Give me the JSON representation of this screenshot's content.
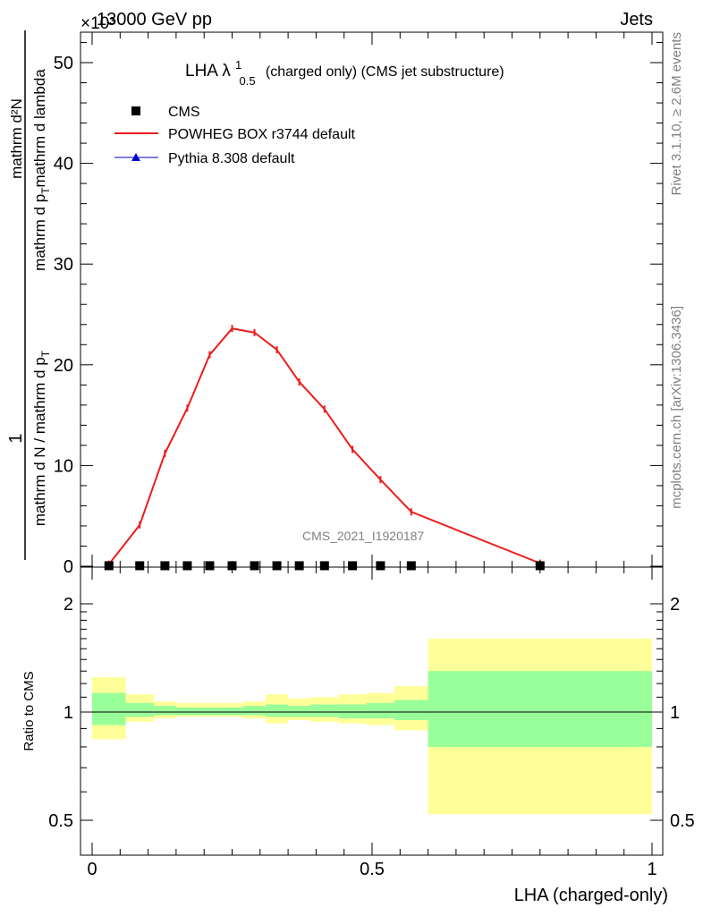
{
  "header": {
    "left": "13000 GeV pp",
    "right": "Jets",
    "exponent_label": "×10³"
  },
  "side_labels": {
    "rivet": "Rivet 3.1.10, ≥ 2.6M events",
    "mcplots": "mcplots.cern.ch [arXiv:1306.3436]"
  },
  "chart_data": [
    {
      "type": "line",
      "title_main": "LHA λ",
      "title_sup": "1",
      "title_sub": "0.5",
      "title_rest": "(charged only) (CMS jet substructure)",
      "watermark": "CMS_2021_I1920187",
      "ylabel_num": "1",
      "ylabel_den_top": "mathrm d N / mathrm d p",
      "ylabel_den_sub": "T",
      "ylabel_frac_num": "mathrm d²N",
      "ylabel_frac_den": "mathrm d p",
      "ylabel_frac_den_sub": "T",
      "ylabel_frac_den_rest": "mathrm d lambda",
      "xlim": [
        0,
        1
      ],
      "ylim": [
        0,
        53
      ],
      "yticks": [
        0,
        10,
        20,
        30,
        40,
        50
      ],
      "legend": [
        {
          "name": "CMS",
          "marker": "square",
          "color": "#000000"
        },
        {
          "name": "POWHEG BOX r3744 default",
          "marker": "line",
          "color": "#ee1c1c"
        },
        {
          "name": "Pythia 8.308 default",
          "marker": "triangle",
          "color": "#0000cc"
        }
      ],
      "series": [
        {
          "name": "POWHEG BOX r3744 default",
          "color": "#ee1c1c",
          "x": [
            0.03,
            0.085,
            0.13,
            0.17,
            0.21,
            0.25,
            0.29,
            0.33,
            0.37,
            0.415,
            0.465,
            0.515,
            0.57,
            0.8
          ],
          "y": [
            0.2,
            4.1,
            11.2,
            15.7,
            21.0,
            23.6,
            23.2,
            21.5,
            18.3,
            15.6,
            11.6,
            8.6,
            5.4,
            0.3
          ]
        }
      ],
      "cms_points": {
        "x": [
          0.03,
          0.085,
          0.13,
          0.17,
          0.21,
          0.25,
          0.29,
          0.33,
          0.37,
          0.415,
          0.465,
          0.515,
          0.57,
          0.8
        ],
        "y": [
          0.05,
          0.05,
          0.05,
          0.05,
          0.05,
          0.05,
          0.05,
          0.05,
          0.05,
          0.05,
          0.05,
          0.05,
          0.05,
          0.05
        ]
      }
    },
    {
      "type": "area",
      "ylabel": "Ratio to CMS",
      "xlabel": "LHA (charged-only)",
      "xlim": [
        0,
        1
      ],
      "ylim": [
        0.41,
        2.3
      ],
      "scale": "log",
      "yticks": [
        0.5,
        1,
        2
      ],
      "xticks": [
        0,
        0.5,
        1
      ],
      "reference_line": 1,
      "bins": [
        {
          "x0": 0.0,
          "x1": 0.06,
          "yellow": [
            0.84,
            1.25
          ],
          "green": [
            0.92,
            1.13
          ]
        },
        {
          "x0": 0.06,
          "x1": 0.11,
          "yellow": [
            0.94,
            1.12
          ],
          "green": [
            0.97,
            1.06
          ]
        },
        {
          "x0": 0.11,
          "x1": 0.15,
          "yellow": [
            0.96,
            1.07
          ],
          "green": [
            0.98,
            1.04
          ]
        },
        {
          "x0": 0.15,
          "x1": 0.19,
          "yellow": [
            0.97,
            1.06
          ],
          "green": [
            0.98,
            1.03
          ]
        },
        {
          "x0": 0.19,
          "x1": 0.23,
          "yellow": [
            0.97,
            1.06
          ],
          "green": [
            0.98,
            1.03
          ]
        },
        {
          "x0": 0.23,
          "x1": 0.27,
          "yellow": [
            0.97,
            1.06
          ],
          "green": [
            0.98,
            1.03
          ]
        },
        {
          "x0": 0.27,
          "x1": 0.31,
          "yellow": [
            0.96,
            1.07
          ],
          "green": [
            0.98,
            1.04
          ]
        },
        {
          "x0": 0.31,
          "x1": 0.35,
          "yellow": [
            0.93,
            1.12
          ],
          "green": [
            0.97,
            1.05
          ]
        },
        {
          "x0": 0.35,
          "x1": 0.39,
          "yellow": [
            0.95,
            1.09
          ],
          "green": [
            0.97,
            1.04
          ]
        },
        {
          "x0": 0.39,
          "x1": 0.44,
          "yellow": [
            0.94,
            1.1
          ],
          "green": [
            0.97,
            1.05
          ]
        },
        {
          "x0": 0.44,
          "x1": 0.49,
          "yellow": [
            0.93,
            1.12
          ],
          "green": [
            0.96,
            1.05
          ]
        },
        {
          "x0": 0.49,
          "x1": 0.54,
          "yellow": [
            0.92,
            1.13
          ],
          "green": [
            0.96,
            1.06
          ]
        },
        {
          "x0": 0.54,
          "x1": 0.6,
          "yellow": [
            0.89,
            1.18
          ],
          "green": [
            0.95,
            1.08
          ]
        },
        {
          "x0": 0.6,
          "x1": 1.0,
          "yellow": [
            0.52,
            1.6
          ],
          "green": [
            0.8,
            1.3
          ]
        }
      ]
    }
  ],
  "colors": {
    "yellow_band": "#ffff99",
    "green_band": "#99ff99",
    "powheg": "#ee1c1c",
    "pythia": "#0000cc"
  }
}
